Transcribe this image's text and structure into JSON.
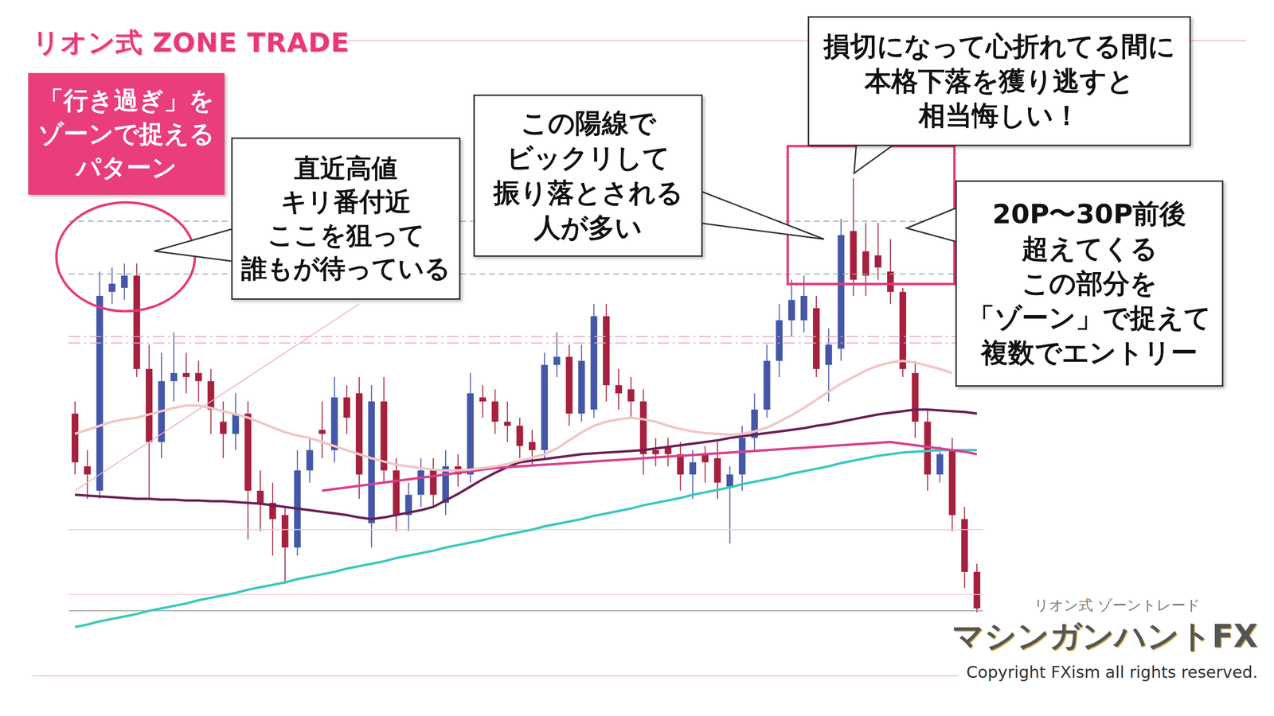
{
  "chart_data": {
    "type": "candlestick",
    "title": "リオン式 ZONE TRADE",
    "subtitle": "「行き過ぎ」を\nゾーンで捉える\nパターン",
    "categories": [
      null,
      null,
      null,
      null,
      null,
      null,
      null,
      null,
      null,
      null,
      null,
      null,
      null,
      null,
      null,
      null,
      null,
      null,
      null,
      null,
      null,
      null,
      null,
      null,
      null,
      null,
      null,
      null,
      null,
      null,
      null,
      null,
      null,
      null,
      null,
      null,
      null,
      null,
      null,
      null,
      null,
      null,
      null,
      null,
      null,
      null,
      null,
      null,
      null,
      null,
      null,
      null,
      null,
      null,
      null,
      null,
      null,
      null,
      null,
      null,
      null,
      null,
      null,
      null,
      null,
      null,
      null,
      null,
      null,
      null,
      null,
      null,
      null,
      null
    ],
    "open": [
      255,
      190,
      160,
      405,
      410,
      425,
      310,
      220,
      295,
      305,
      305,
      295,
      245,
      230,
      255,
      160,
      145,
      130,
      90,
      185,
      235,
      210,
      275,
      280,
      120,
      270,
      185,
      130,
      155,
      185,
      145,
      190,
      180,
      275,
      270,
      245,
      240,
      220,
      210,
      315,
      325,
      255,
      260,
      375,
      290,
      285,
      270,
      210,
      215,
      205,
      180,
      205,
      200,
      165,
      180,
      225,
      260,
      320,
      370,
      370,
      385,
      315,
      335,
      480,
      455,
      450,
      430,
      405,
      305,
      245,
      180,
      210,
      125,
      60
    ],
    "high": [
      270,
      210,
      430,
      435,
      440,
      440,
      340,
      330,
      355,
      330,
      320,
      310,
      270,
      280,
      270,
      185,
      170,
      140,
      210,
      225,
      270,
      300,
      290,
      300,
      290,
      300,
      200,
      170,
      200,
      200,
      210,
      205,
      305,
      290,
      285,
      270,
      250,
      235,
      330,
      355,
      340,
      340,
      390,
      390,
      310,
      300,
      285,
      225,
      225,
      220,
      210,
      215,
      220,
      190,
      240,
      280,
      340,
      390,
      420,
      425,
      400,
      360,
      495,
      545,
      490,
      490,
      470,
      410,
      320,
      260,
      215,
      225,
      140,
      70
    ],
    "low": [
      180,
      150,
      150,
      390,
      395,
      300,
      150,
      200,
      270,
      280,
      270,
      230,
      200,
      210,
      100,
      110,
      80,
      45,
      80,
      170,
      200,
      195,
      230,
      150,
      90,
      170,
      110,
      110,
      140,
      140,
      130,
      165,
      170,
      250,
      230,
      220,
      200,
      190,
      200,
      300,
      240,
      245,
      250,
      270,
      260,
      250,
      180,
      190,
      190,
      160,
      150,
      170,
      150,
      95,
      160,
      210,
      250,
      300,
      350,
      355,
      300,
      270,
      320,
      400,
      400,
      420,
      390,
      300,
      225,
      160,
      170,
      110,
      40,
      10
    ],
    "close": [
      195,
      180,
      400,
      415,
      425,
      310,
      220,
      295,
      305,
      300,
      295,
      260,
      230,
      255,
      160,
      145,
      125,
      90,
      185,
      210,
      230,
      275,
      250,
      180,
      270,
      185,
      130,
      155,
      185,
      155,
      190,
      180,
      280,
      270,
      245,
      240,
      215,
      210,
      315,
      325,
      255,
      320,
      375,
      290,
      280,
      270,
      205,
      205,
      205,
      180,
      195,
      195,
      170,
      180,
      225,
      260,
      320,
      370,
      395,
      400,
      310,
      340,
      475,
      420,
      425,
      435,
      405,
      310,
      245,
      180,
      205,
      130,
      60,
      15
    ],
    "color": {
      "up": "#4457a8",
      "down": "#a5213d"
    },
    "series": [
      {
        "type": "line",
        "color": "#3cc7c0",
        "values": [
          -8,
          -5,
          -1,
          2,
          5,
          8,
          12,
          15,
          18,
          21,
          25,
          28,
          31,
          34,
          38,
          41,
          44,
          47,
          51,
          54,
          57,
          60,
          64,
          67,
          70,
          73,
          77,
          80,
          83,
          86,
          90,
          93,
          96,
          99,
          103,
          106,
          109,
          112,
          116,
          119,
          122,
          125,
          129,
          132,
          135,
          138,
          142,
          145,
          148,
          151,
          155,
          158,
          161,
          164,
          168,
          171,
          174,
          177,
          181,
          184,
          187,
          190,
          194,
          197,
          200,
          203,
          205,
          207,
          208,
          209,
          210,
          210,
          210,
          210
        ]
      },
      {
        "type": "line",
        "color": "#6b1f55",
        "values": [
          155,
          154,
          153,
          152,
          151,
          150,
          150,
          149,
          149,
          148,
          148,
          147,
          147,
          146,
          145,
          144,
          142,
          140,
          138,
          136,
          134,
          132,
          130,
          127,
          125,
          127,
          130,
          133,
          136,
          140,
          148,
          156,
          165,
          174,
          182,
          189,
          195,
          197,
          199,
          201,
          203,
          205,
          206,
          207,
          208,
          209,
          210,
          212,
          214,
          216,
          218,
          220,
          222,
          225,
          227,
          229,
          231,
          233,
          235,
          237,
          240,
          242,
          245,
          248,
          251,
          254,
          256,
          258,
          260,
          260,
          259,
          258,
          257,
          255
        ]
      },
      {
        "type": "line",
        "color": "#d8408f",
        "values": [
          null,
          null,
          null,
          null,
          null,
          null,
          null,
          null,
          null,
          null,
          null,
          null,
          null,
          null,
          null,
          null,
          null,
          null,
          null,
          null,
          160,
          162,
          164,
          166,
          168,
          170,
          172,
          174,
          176,
          178,
          180,
          182,
          184,
          186,
          188,
          189,
          190,
          191,
          192,
          193,
          194,
          195,
          196,
          197,
          198,
          199,
          200,
          201,
          202,
          203,
          204,
          205,
          206,
          207,
          208,
          209,
          210,
          211,
          212,
          213,
          214,
          215,
          216,
          217,
          218,
          219,
          220,
          218,
          216,
          214,
          212,
          210,
          208,
          205
        ]
      },
      {
        "type": "line",
        "color": "#f0c6c4",
        "values": [
          230,
          235,
          240,
          245,
          248,
          250,
          254,
          258,
          262,
          265,
          265,
          262,
          258,
          254,
          250,
          244,
          238,
          232,
          228,
          225,
          220,
          215,
          210,
          205,
          200,
          196,
          192,
          190,
          188,
          186,
          185,
          185,
          186,
          188,
          190,
          193,
          197,
          201,
          205,
          212,
          222,
          232,
          240,
          245,
          248,
          250,
          248,
          245,
          240,
          236,
          233,
          231,
          230,
          229,
          230,
          233,
          238,
          245,
          253,
          262,
          272,
          282,
          292,
          300,
          308,
          314,
          318,
          320,
          318,
          314,
          310,
          305,
          null,
          null
        ]
      }
    ],
    "levels": [
      {
        "value": 492,
        "color": "#8bb596",
        "line_style": "dashed"
      },
      {
        "value": 427,
        "color": "#8bb596",
        "line_style": "dashed"
      },
      {
        "value": 350,
        "color": "#e7a4c0",
        "line_style": "dashdot"
      },
      {
        "value": 342,
        "color": "#e7a4c0",
        "line_style": "dashdot"
      },
      {
        "value": 112,
        "color": "#efc8d4",
        "line_style": "solid"
      },
      {
        "value": 32,
        "color": "#efc8d4",
        "line_style": "solid"
      },
      {
        "value": 12,
        "color": "#9a9a9a",
        "line_style": "solid"
      }
    ],
    "trendline": {
      "x": [
        0,
        23
      ],
      "y": [
        160,
        390
      ],
      "color": "#e8b4c4"
    },
    "ylim": [
      -20,
      560
    ],
    "tick_labels": false,
    "grid": false,
    "annotations": [
      "直近高値\nキリ番付近\nここを狙って\n誰もが待っている",
      "この陽線で\nビックリして\n振り落とされる\n人が多い",
      "損切になって心折れてる間に\n本格下落を獲り逃すと\n相当悔しい！",
      "20P〜30P前後\n超えてくる\nこの部分を\n「ゾーン」で捉えて\n複数でエントリー"
    ],
    "footer": {
      "brand": "リオン式 ゾーントレード",
      "logo": "マシンガンハントFX",
      "copyright": "Copyright FXism all rights reserved."
    }
  }
}
